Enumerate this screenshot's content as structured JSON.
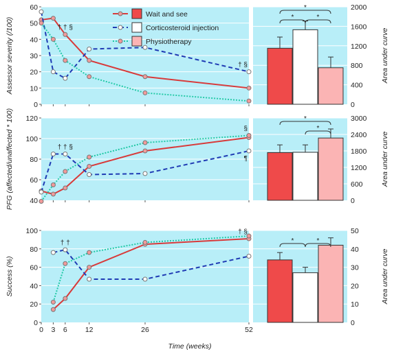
{
  "colors": {
    "panel_bg": "#b8eef8",
    "wait_and_see": "#d83a3a",
    "corticosteroid": "#1f3bb4",
    "physiotherapy": "#22c9a6",
    "bar_wait": "#ef4a4a",
    "bar_cortico": "#ffffff",
    "bar_physio": "#fbb4b4"
  },
  "chart_data": {
    "type": "line",
    "xlabel": "Time (weeks)",
    "x_ticks": [
      0,
      3,
      6,
      12,
      26,
      52
    ],
    "legend": [
      {
        "name": "Wait and see",
        "style": "filled-box"
      },
      {
        "name": "Corticosteroid injection",
        "style": "outline-box"
      },
      {
        "name": "Physiotherapy",
        "style": "pink-box"
      }
    ],
    "panels": [
      {
        "ylabel": "Assessor severity (/100)",
        "ylim": [
          0,
          60
        ],
        "y_ticks": [
          0,
          10,
          20,
          30,
          40,
          50,
          60
        ],
        "x": [
          0,
          3,
          6,
          12,
          26,
          52
        ],
        "series": [
          {
            "name": "Wait and see",
            "values": [
              52,
              53,
              43,
              27,
              17,
              10
            ]
          },
          {
            "name": "Corticosteroid injection",
            "values": [
              57,
              20,
              16,
              34,
              35,
              20
            ]
          },
          {
            "name": "Physiotherapy",
            "values": [
              50,
              40,
              27,
              17,
              7,
              2
            ]
          }
        ],
        "annotations": [
          {
            "text": "† † §",
            "x": 6,
            "y": 43
          },
          {
            "text": "† §",
            "x": 52,
            "y": 20
          }
        ],
        "bar": {
          "ylabel": "Area under curve",
          "ylim": [
            0,
            2000
          ],
          "y_ticks": [
            0,
            400,
            800,
            1200,
            1600,
            2000
          ],
          "values": [
            1150,
            1530,
            750
          ],
          "errors": [
            230,
            180,
            220
          ],
          "brackets": [
            {
              "from": 0,
              "to": 1,
              "label": "*"
            },
            {
              "from": 1,
              "to": 2,
              "label": "*"
            },
            {
              "from": 0,
              "to": 2,
              "label": "*"
            }
          ]
        }
      },
      {
        "ylabel": "PFG (affected/unaffected * 100)",
        "ylim": [
          40,
          120
        ],
        "y_ticks": [
          40,
          60,
          80,
          100,
          120
        ],
        "x": [
          0,
          3,
          6,
          12,
          26,
          52
        ],
        "series": [
          {
            "name": "Wait and see",
            "values": [
              49,
              46,
              52,
              73,
              88,
              101
            ]
          },
          {
            "name": "Corticosteroid injection",
            "values": [
              48,
              85,
              85,
              65,
              66,
              88
            ]
          },
          {
            "name": "Physiotherapy",
            "values": [
              39,
              55,
              68,
              82,
              96,
              103
            ]
          }
        ],
        "annotations": [
          {
            "text": "† † §",
            "x": 6,
            "y": 85
          },
          {
            "text": "§",
            "x": 52,
            "y": 103
          },
          {
            "text": "¶",
            "x": 52,
            "y": 88
          }
        ],
        "bar": {
          "ylabel": "Area under curve",
          "ylim": [
            0,
            3000
          ],
          "y_ticks": [
            0,
            600,
            1200,
            1800,
            2400,
            3000
          ],
          "values": [
            1740,
            1750,
            2270
          ],
          "errors": [
            280,
            270,
            330
          ],
          "brackets": [
            {
              "from": 1,
              "to": 2,
              "label": "*"
            },
            {
              "from": 0,
              "to": 2,
              "label": "*"
            }
          ]
        }
      },
      {
        "ylabel": "Success (%)",
        "ylim": [
          0,
          100
        ],
        "y_ticks": [
          0,
          20,
          40,
          60,
          80,
          100
        ],
        "x": [
          3,
          6,
          12,
          26,
          52
        ],
        "series": [
          {
            "name": "Wait and see",
            "values": [
              14,
              26,
              60,
              85,
              91
            ]
          },
          {
            "name": "Corticosteroid injection",
            "values": [
              76,
              79,
              47,
              47,
              72
            ]
          },
          {
            "name": "Physiotherapy",
            "values": [
              22,
              64,
              76,
              87,
              94
            ]
          }
        ],
        "annotations": [
          {
            "text": "† †",
            "x": 6,
            "y": 79
          },
          {
            "text": "† §",
            "x": 52,
            "y": 91
          }
        ],
        "bar": {
          "ylabel": "Area under curve",
          "ylim": [
            0,
            50
          ],
          "y_ticks": [
            0,
            10,
            20,
            30,
            40,
            50
          ],
          "values": [
            34,
            27,
            42
          ],
          "errors": [
            4,
            3,
            4
          ],
          "brackets": [
            {
              "from": 0,
              "to": 1,
              "label": "*"
            },
            {
              "from": 1,
              "to": 2,
              "label": "*"
            }
          ]
        }
      }
    ]
  }
}
